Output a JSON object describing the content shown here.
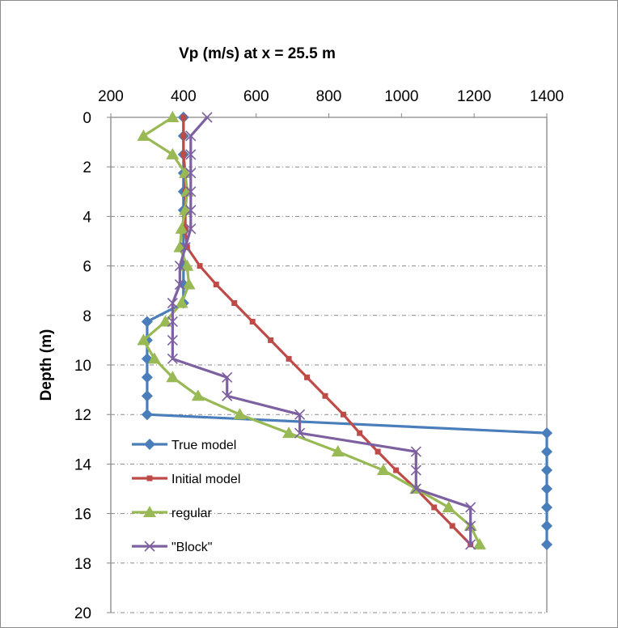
{
  "chart_data": {
    "type": "line",
    "title": "Vp (m/s) at  x = 25.5 m",
    "xlabel": "",
    "ylabel": "Depth (m)",
    "xlim": [
      200,
      1400
    ],
    "ylim": [
      0,
      20
    ],
    "y_inverted": true,
    "x_axis_position": "top",
    "xticks": [
      200,
      400,
      600,
      800,
      1000,
      1200,
      1400
    ],
    "yticks": [
      0,
      2,
      4,
      6,
      8,
      10,
      12,
      14,
      16,
      18,
      20
    ],
    "xtick_labels": [
      "200",
      "400",
      "600",
      "800",
      "1000",
      "1200",
      "1400"
    ],
    "ytick_labels": [
      "0",
      "2",
      "4",
      "6",
      "8",
      "10",
      "12",
      "14",
      "16",
      "18",
      "20"
    ],
    "grid": "horizontal dashed",
    "legend_position": "bottom-left",
    "series": [
      {
        "name": "True model",
        "color": "#4a7ebb",
        "marker": "diamond",
        "points": [
          [
            400,
            0
          ],
          [
            400,
            0.75
          ],
          [
            400,
            1.5
          ],
          [
            400,
            2.25
          ],
          [
            400,
            3
          ],
          [
            400,
            3.75
          ],
          [
            400,
            4.5
          ],
          [
            400,
            5.25
          ],
          [
            400,
            6
          ],
          [
            400,
            6.75
          ],
          [
            400,
            7.5
          ],
          [
            300,
            8.25
          ],
          [
            300,
            9
          ],
          [
            300,
            9.75
          ],
          [
            300,
            10.5
          ],
          [
            300,
            11.25
          ],
          [
            300,
            12
          ],
          [
            1400,
            12.75
          ],
          [
            1400,
            13.5
          ],
          [
            1400,
            14.25
          ],
          [
            1400,
            15
          ],
          [
            1400,
            15.75
          ],
          [
            1400,
            16.5
          ],
          [
            1400,
            17.25
          ]
        ]
      },
      {
        "name": "Initial model",
        "color": "#be4b48",
        "marker": "square",
        "points": [
          [
            400,
            0
          ],
          [
            400,
            0.75
          ],
          [
            400,
            1.5
          ],
          [
            405,
            2.25
          ],
          [
            405,
            3
          ],
          [
            405,
            3.75
          ],
          [
            405,
            4.5
          ],
          [
            410,
            5.25
          ],
          [
            445,
            6
          ],
          [
            490,
            6.75
          ],
          [
            540,
            7.5
          ],
          [
            590,
            8.25
          ],
          [
            640,
            9
          ],
          [
            690,
            9.75
          ],
          [
            740,
            10.5
          ],
          [
            790,
            11.25
          ],
          [
            840,
            12
          ],
          [
            885,
            12.75
          ],
          [
            935,
            13.5
          ],
          [
            985,
            14.25
          ],
          [
            1040,
            15
          ],
          [
            1090,
            15.75
          ],
          [
            1140,
            16.5
          ],
          [
            1190,
            17.25
          ]
        ]
      },
      {
        "name": "regular",
        "color": "#98b954",
        "marker": "triangle",
        "points": [
          [
            370,
            0
          ],
          [
            290,
            0.75
          ],
          [
            370,
            1.5
          ],
          [
            405,
            2.25
          ],
          [
            410,
            3
          ],
          [
            405,
            3.75
          ],
          [
            395,
            4.5
          ],
          [
            390,
            5.25
          ],
          [
            410,
            6
          ],
          [
            415,
            6.75
          ],
          [
            395,
            7.5
          ],
          [
            350,
            8.25
          ],
          [
            290,
            9
          ],
          [
            320,
            9.75
          ],
          [
            370,
            10.5
          ],
          [
            440,
            11.25
          ],
          [
            555,
            12
          ],
          [
            690,
            12.75
          ],
          [
            825,
            13.5
          ],
          [
            950,
            14.25
          ],
          [
            1040,
            15
          ],
          [
            1130,
            15.75
          ],
          [
            1190,
            16.5
          ],
          [
            1215,
            17.25
          ]
        ]
      },
      {
        "name": "\"Block\"",
        "color": "#7d60a0",
        "marker": "x",
        "points": [
          [
            465,
            0
          ],
          [
            420,
            0.75
          ],
          [
            420,
            1.5
          ],
          [
            420,
            2.25
          ],
          [
            420,
            3
          ],
          [
            420,
            3.75
          ],
          [
            420,
            4.5
          ],
          [
            405,
            5.25
          ],
          [
            390,
            6
          ],
          [
            390,
            6.75
          ],
          [
            370,
            7.5
          ],
          [
            370,
            8.25
          ],
          [
            370,
            9
          ],
          [
            370,
            9.75
          ],
          [
            520,
            10.5
          ],
          [
            520,
            11.25
          ],
          [
            720,
            12
          ],
          [
            720,
            12.75
          ],
          [
            1040,
            13.5
          ],
          [
            1040,
            14.25
          ],
          [
            1040,
            15
          ],
          [
            1190,
            15.75
          ],
          [
            1190,
            16.5
          ],
          [
            1190,
            17.25
          ]
        ]
      }
    ]
  }
}
